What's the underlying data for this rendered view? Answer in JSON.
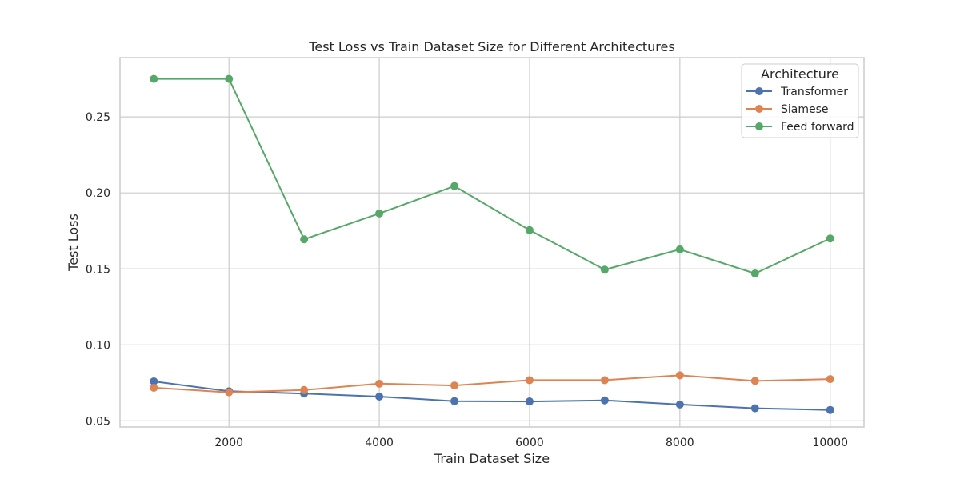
{
  "chart_data": {
    "type": "line",
    "title": "Test Loss vs Train Dataset Size for Different Architectures",
    "xlabel": "Train Dataset Size",
    "ylabel": "Test Loss",
    "x": [
      1000,
      2000,
      3000,
      4000,
      5000,
      6000,
      7000,
      8000,
      9000,
      10000
    ],
    "xlim": [
      550,
      10450
    ],
    "ylim": [
      0.046,
      0.289
    ],
    "xticks": [
      2000,
      4000,
      6000,
      8000,
      10000
    ],
    "yticks": [
      0.05,
      0.1,
      0.15,
      0.2,
      0.25
    ],
    "xtick_labels": [
      "2000",
      "4000",
      "6000",
      "8000",
      "10000"
    ],
    "ytick_labels": [
      "0.05",
      "0.10",
      "0.15",
      "0.20",
      "0.25"
    ],
    "grid": true,
    "legend": {
      "title": "Architecture",
      "placement": "top-right"
    },
    "series": [
      {
        "name": "Transformer",
        "color": "#4c72b0",
        "values": [
          0.076,
          0.0695,
          0.068,
          0.066,
          0.063,
          0.0628,
          0.0635,
          0.0608,
          0.0583,
          0.0572
        ]
      },
      {
        "name": "Siamese",
        "color": "#dd8452",
        "values": [
          0.0718,
          0.0688,
          0.0703,
          0.0745,
          0.0733,
          0.0768,
          0.0768,
          0.08,
          0.0763,
          0.0775
        ]
      },
      {
        "name": "Feed forward",
        "color": "#55a868",
        "values": [
          0.275,
          0.275,
          0.1695,
          0.1865,
          0.2045,
          0.1755,
          0.1495,
          0.1628,
          0.147,
          0.17
        ]
      }
    ]
  }
}
